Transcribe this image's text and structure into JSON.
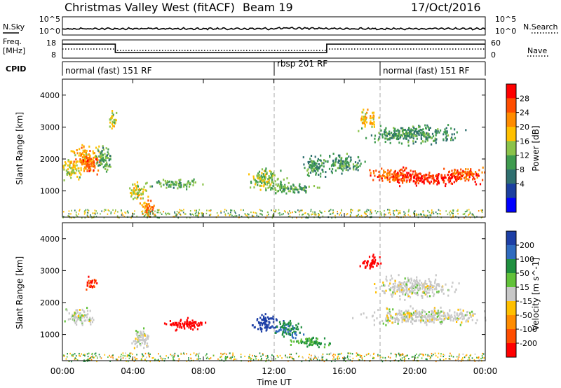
{
  "header": {
    "title": "Christmas Valley West (fitACF)",
    "beam": "Beam 19",
    "date": "17/Oct/2016"
  },
  "strips": {
    "nsky": {
      "label": "N.Sky",
      "right_label": "N.Search",
      "ticks_left": [
        "10^5",
        "10^0"
      ],
      "ticks_right": [
        "10^5",
        "10^0"
      ]
    },
    "freq": {
      "label_line1": "Freq.",
      "label_line2": "[MHz]",
      "right_label": "Nave",
      "ticks_left": [
        "18",
        "8"
      ],
      "ticks_right": [
        "60",
        "0"
      ],
      "steps": [
        {
          "start_h": 0,
          "end_h": 3.0,
          "level": "high"
        },
        {
          "start_h": 3.0,
          "end_h": 15.0,
          "level": "low"
        },
        {
          "start_h": 15.0,
          "end_h": 24.0,
          "level": "high"
        }
      ]
    },
    "cpid": {
      "label": "CPID",
      "segments": [
        {
          "start_h": 0,
          "text": "normal (fast) 151 RF"
        },
        {
          "start_h": 12,
          "text": "rbsp 201 RF"
        },
        {
          "start_h": 18,
          "text": "normal (fast) 151 RF"
        }
      ]
    }
  },
  "panels": [
    {
      "ylabel": "Slant Range [km]",
      "yticks": [
        "1000",
        "2000",
        "3000",
        "4000"
      ]
    },
    {
      "ylabel": "Slant Range [km]",
      "yticks": [
        "1000",
        "2000",
        "3000",
        "4000"
      ]
    }
  ],
  "xaxis": {
    "label": "Time UT",
    "ticks": [
      "00:00",
      "04:00",
      "08:00",
      "12:00",
      "16:00",
      "20:00",
      "00:00"
    ]
  },
  "colorbars": {
    "power": {
      "label": "Power [dB]",
      "ticks": [
        "28",
        "24",
        "20",
        "16",
        "12",
        "8",
        "4"
      ],
      "colors": [
        "#ff0000",
        "#ff4d00",
        "#ff8c00",
        "#ffc000",
        "#8bc34a",
        "#3f9b4f",
        "#2f6f6f",
        "#1b3fa0",
        "#0000ff"
      ]
    },
    "velocity": {
      "label": "Velocity [m s^-1]",
      "ticks": [
        "200",
        "100",
        "50",
        "15",
        "-15",
        "-50",
        "-100",
        "-200"
      ],
      "colors": [
        "#1d3fa6",
        "#2f6bbf",
        "#1f8f3f",
        "#62c23a",
        "#c8c8c8",
        "#ffc000",
        "#ff8c00",
        "#ff4d00",
        "#ff0000"
      ]
    }
  },
  "chart_data": {
    "type": "heatmap",
    "x_range_hours": [
      0,
      24
    ],
    "y_range_km": [
      180,
      4500
    ],
    "grid": false,
    "dashed_time_markers_h": [
      12,
      18
    ],
    "power_blobs": [
      {
        "t": 0.5,
        "r": 1700,
        "dt": 0.5,
        "dr": 300,
        "v": 18
      },
      {
        "t": 1.2,
        "r": 2100,
        "dt": 0.7,
        "dr": 350,
        "v": 22
      },
      {
        "t": 1.6,
        "r": 1850,
        "dt": 0.5,
        "dr": 250,
        "v": 26
      },
      {
        "t": 2.3,
        "r": 2000,
        "dt": 0.4,
        "dr": 400,
        "v": 14
      },
      {
        "t": 2.8,
        "r": 3200,
        "dt": 0.2,
        "dr": 300,
        "v": 18
      },
      {
        "t": 4.2,
        "r": 1000,
        "dt": 0.5,
        "dr": 250,
        "v": 18
      },
      {
        "t": 4.8,
        "r": 500,
        "dt": 0.4,
        "dr": 250,
        "v": 24
      },
      {
        "t": 6.5,
        "r": 1250,
        "dt": 1.3,
        "dr": 130,
        "v": 14
      },
      {
        "t": 11.5,
        "r": 1400,
        "dt": 0.9,
        "dr": 300,
        "v": 16
      },
      {
        "t": 13.0,
        "r": 1100,
        "dt": 1.3,
        "dr": 150,
        "v": 14
      },
      {
        "t": 14.3,
        "r": 1800,
        "dt": 0.6,
        "dr": 300,
        "v": 12
      },
      {
        "t": 16.0,
        "r": 1900,
        "dt": 1.0,
        "dr": 250,
        "v": 12
      },
      {
        "t": 17.3,
        "r": 3300,
        "dt": 0.5,
        "dr": 250,
        "v": 20
      },
      {
        "t": 19.0,
        "r": 1500,
        "dt": 1.5,
        "dr": 200,
        "v": 26
      },
      {
        "t": 21.0,
        "r": 1400,
        "dt": 2.0,
        "dr": 180,
        "v": 29
      },
      {
        "t": 22.8,
        "r": 1550,
        "dt": 1.2,
        "dr": 180,
        "v": 26
      },
      {
        "t": 20.0,
        "r": 2800,
        "dt": 2.5,
        "dr": 250,
        "v": 12
      }
    ],
    "velocity_blobs": [
      {
        "t": 1.0,
        "r": 1600,
        "dt": 0.7,
        "dr": 250,
        "v": 0
      },
      {
        "t": 1.6,
        "r": 2600,
        "dt": 0.3,
        "dr": 200,
        "v": -150
      },
      {
        "t": 4.5,
        "r": 900,
        "dt": 0.5,
        "dr": 300,
        "v": 0
      },
      {
        "t": 7.0,
        "r": 1350,
        "dt": 1.2,
        "dr": 150,
        "v": -170
      },
      {
        "t": 11.5,
        "r": 1400,
        "dt": 0.7,
        "dr": 250,
        "v": 180
      },
      {
        "t": 12.8,
        "r": 1200,
        "dt": 0.8,
        "dr": 250,
        "v": 70
      },
      {
        "t": 14.0,
        "r": 800,
        "dt": 1.0,
        "dr": 150,
        "v": 40
      },
      {
        "t": 17.5,
        "r": 3300,
        "dt": 0.5,
        "dr": 200,
        "v": -200
      },
      {
        "t": 20.5,
        "r": 1600,
        "dt": 3.0,
        "dr": 250,
        "v": 0
      },
      {
        "t": 20.0,
        "r": 2500,
        "dt": 2.0,
        "dr": 300,
        "v": 0
      }
    ]
  }
}
